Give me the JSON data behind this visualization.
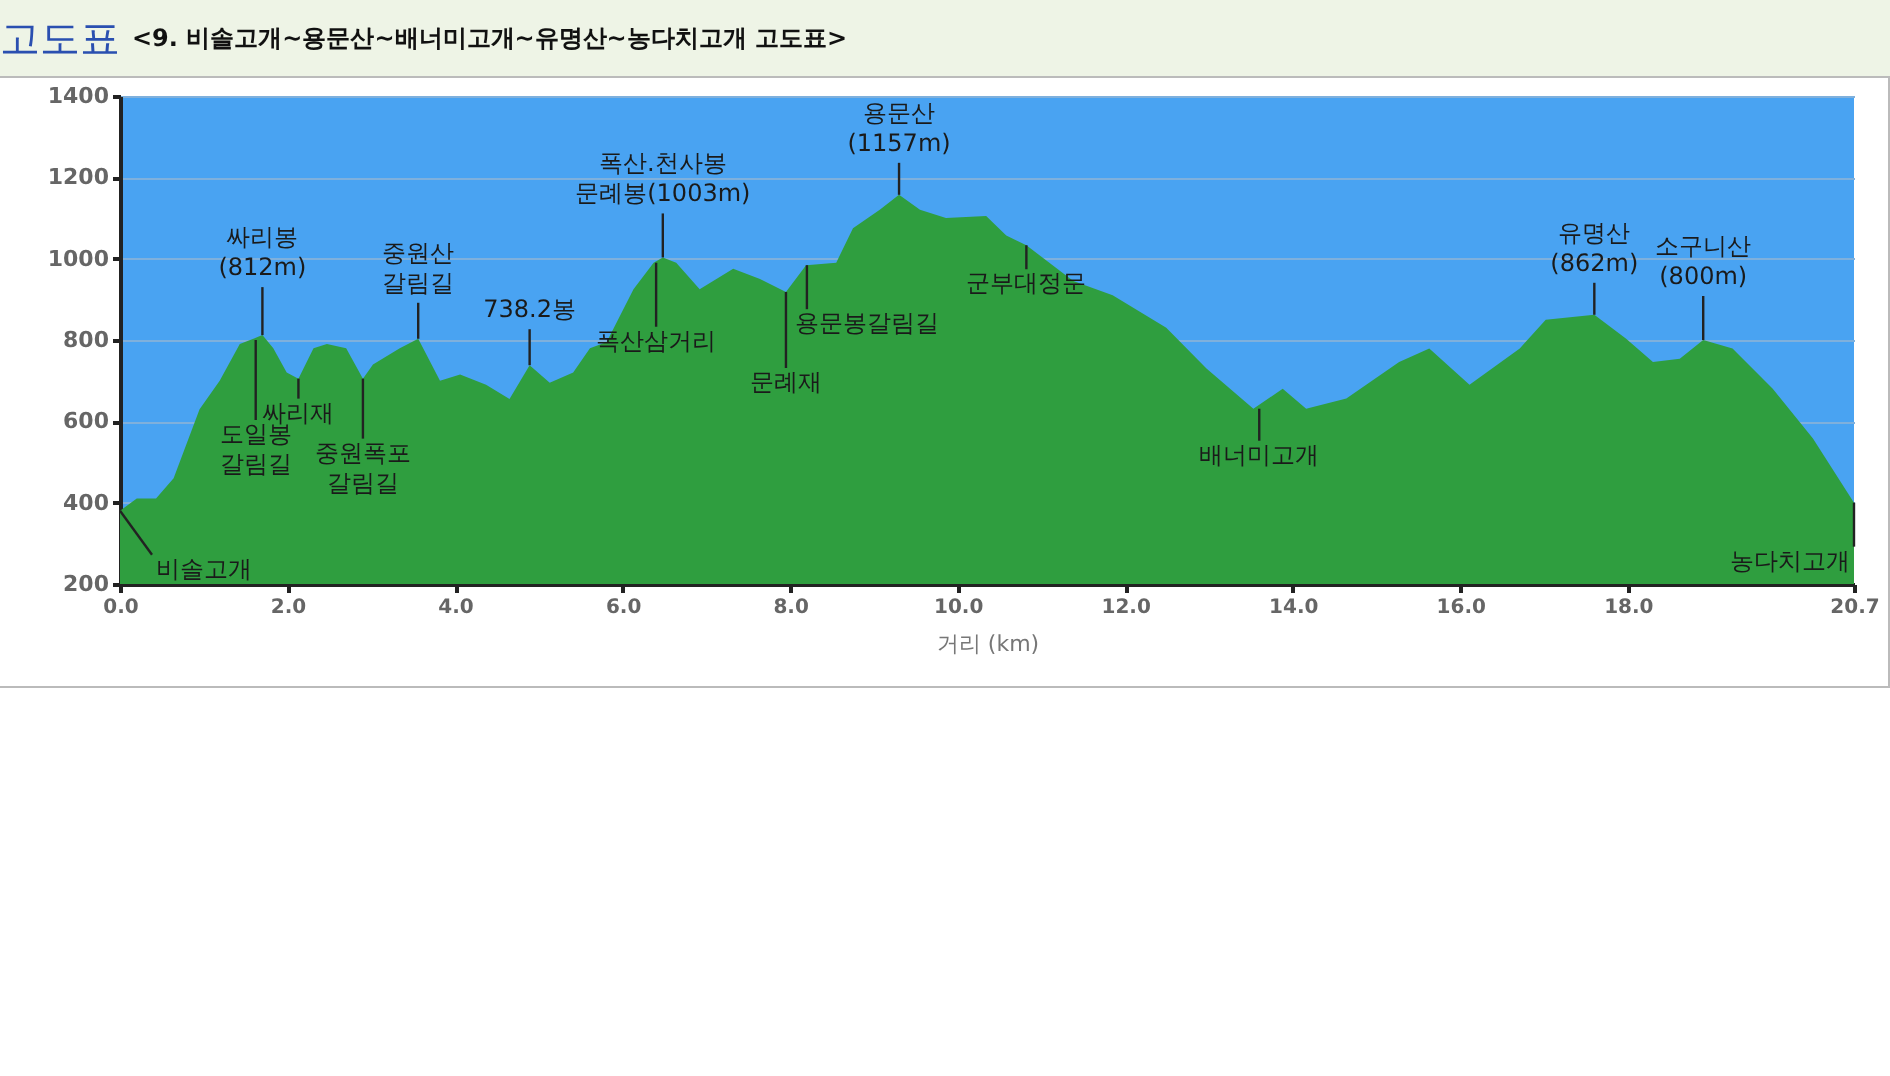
{
  "chart_data": {
    "type": "area",
    "title": "고도표",
    "subtitle": "<9. 비솔고개~용문산~배너미고개~유명산~농다치고개 고도표>",
    "xlabel": "거리  (km)",
    "xlim": [
      0,
      20.7
    ],
    "ylim": [
      200,
      1400
    ],
    "xticks": [
      {
        "value": 0,
        "label": "0.0"
      },
      {
        "value": 2,
        "label": "2.0"
      },
      {
        "value": 4,
        "label": "4.0"
      },
      {
        "value": 6,
        "label": "6.0"
      },
      {
        "value": 8,
        "label": "8.0"
      },
      {
        "value": 10,
        "label": "10.0"
      },
      {
        "value": 12,
        "label": "12.0"
      },
      {
        "value": 14,
        "label": "14.0"
      },
      {
        "value": 16,
        "label": "16.0"
      },
      {
        "value": 18,
        "label": "18.0"
      },
      {
        "value": 20.7,
        "label": "20.7"
      }
    ],
    "yticks": [
      200,
      400,
      600,
      800,
      1000,
      1200,
      1400
    ],
    "grid": "y",
    "series": [
      {
        "color": "#2f9e3f",
        "x": [
          0,
          0.2,
          0.43,
          0.64,
          0.95,
          1.19,
          1.43,
          1.7,
          1.83,
          1.99,
          2.13,
          2.31,
          2.47,
          2.7,
          2.9,
          3.02,
          3.34,
          3.56,
          3.82,
          4.06,
          4.37,
          4.65,
          4.89,
          5.13,
          5.41,
          5.61,
          5.81,
          6.13,
          6.37,
          6.48,
          6.64,
          6.92,
          7.32,
          7.64,
          7.95,
          8.19,
          8.55,
          8.75,
          9.07,
          9.3,
          9.55,
          9.86,
          10.34,
          10.58,
          10.82,
          11.38,
          11.85,
          12.49,
          12.97,
          13.53,
          13.88,
          14.16,
          14.64,
          15.27,
          15.63,
          16.11,
          16.71,
          17.02,
          17.6,
          17.98,
          18.3,
          18.62,
          18.9,
          19.25,
          19.73,
          20.21,
          20.7
        ],
        "values": [
          380,
          410,
          410,
          460,
          630,
          700,
          790,
          812,
          780,
          720,
          705,
          780,
          790,
          780,
          705,
          740,
          780,
          803,
          700,
          715,
          690,
          655,
          738,
          695,
          720,
          780,
          795,
          925,
          990,
          1003,
          990,
          925,
          975,
          950,
          918,
          984,
          990,
          1075,
          1120,
          1157,
          1120,
          1100,
          1105,
          1057,
          1033,
          945,
          910,
          830,
          730,
          631,
          680,
          631,
          656,
          746,
          779,
          690,
          779,
          850,
          862,
          803,
          746,
          754,
          800,
          779,
          680,
          558,
          400
        ]
      }
    ],
    "annotations": [
      {
        "text": "비솔고개",
        "x": 0,
        "y": 380
      },
      {
        "text": "싸리봉\n(812m)",
        "x": 1.7,
        "y": 812
      },
      {
        "text": "도일봉\n갈림길",
        "x": 1.62,
        "y": 800
      },
      {
        "text": "싸리재",
        "x": 2.13,
        "y": 705
      },
      {
        "text": "중원폭포\n갈림길",
        "x": 2.9,
        "y": 705
      },
      {
        "text": "중원산\n갈림길",
        "x": 3.56,
        "y": 803
      },
      {
        "text": "738.2봉",
        "x": 4.89,
        "y": 738
      },
      {
        "text": "폭산.천사봉\n문례봉(1003m)",
        "x": 6.48,
        "y": 1003
      },
      {
        "text": "폭산삼거리",
        "x": 6.4,
        "y": 990
      },
      {
        "text": "문례재",
        "x": 7.95,
        "y": 918
      },
      {
        "text": "용문봉갈림길",
        "x": 8.2,
        "y": 984
      },
      {
        "text": "용문산\n(1157m)",
        "x": 9.3,
        "y": 1157
      },
      {
        "text": "군부대정문",
        "x": 10.82,
        "y": 1033
      },
      {
        "text": "배너미고개",
        "x": 13.6,
        "y": 631
      },
      {
        "text": "유명산\n(862m)",
        "x": 17.6,
        "y": 862
      },
      {
        "text": "소구니산\n(800m)",
        "x": 18.9,
        "y": 800
      },
      {
        "text": "농다치고개",
        "x": 20.7,
        "y": 400
      }
    ]
  }
}
